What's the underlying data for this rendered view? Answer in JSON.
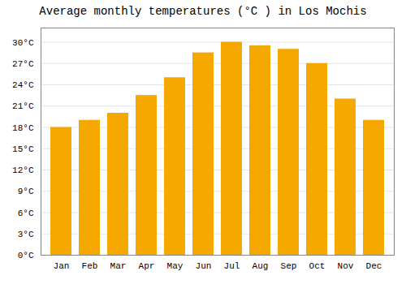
{
  "chart_data": {
    "type": "bar",
    "title": "Average monthly temperatures (°C ) in Los Mochis",
    "categories": [
      "Jan",
      "Feb",
      "Mar",
      "Apr",
      "May",
      "Jun",
      "Jul",
      "Aug",
      "Sep",
      "Oct",
      "Nov",
      "Dec"
    ],
    "values": [
      18,
      19,
      20,
      22.5,
      25,
      28.5,
      30,
      29.5,
      29,
      27,
      22,
      19
    ],
    "color": "#F5A800",
    "ylim": [
      0,
      32
    ],
    "yticks": [
      {
        "value": 0,
        "label": "0°C"
      },
      {
        "value": 3,
        "label": "3°C"
      },
      {
        "value": 6,
        "label": "6°C"
      },
      {
        "value": 9,
        "label": "9°C"
      },
      {
        "value": 12,
        "label": "12°C"
      },
      {
        "value": 15,
        "label": "15°C"
      },
      {
        "value": 18,
        "label": "18°C"
      },
      {
        "value": 21,
        "label": "21°C"
      },
      {
        "value": 24,
        "label": "24°C"
      },
      {
        "value": 27,
        "label": "27°C"
      },
      {
        "value": 30,
        "label": "30°C"
      }
    ],
    "grid": true
  }
}
